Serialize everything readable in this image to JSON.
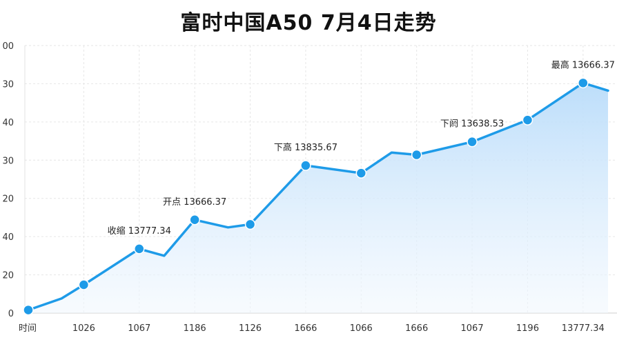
{
  "chart_data": {
    "type": "area",
    "title": "富时中国A50 7月4日走势",
    "xlabel": "",
    "ylabel": "",
    "x_tick_labels": [
      "时间",
      "1026",
      "1067",
      "1186",
      "1126",
      "1666",
      "1066",
      "1666",
      "1067",
      "1196",
      "13777.34"
    ],
    "y_tick_labels": [
      "0",
      "20",
      "40",
      "20",
      "30",
      "40",
      "30",
      "00"
    ],
    "y_tick_values": [
      0,
      1,
      2,
      3,
      4,
      5,
      6,
      7
    ],
    "ylim": [
      0,
      7
    ],
    "grid": true,
    "series": [
      {
        "x": [
          0,
          0.6,
          1,
          2,
          2.45,
          3,
          3.6,
          4,
          5,
          6,
          6.55,
          7,
          8,
          9,
          10,
          10.45
        ],
        "y": [
          0.08,
          0.38,
          0.74,
          1.68,
          1.5,
          2.44,
          2.24,
          2.32,
          3.86,
          3.66,
          4.2,
          4.14,
          4.48,
          5.05,
          6.02,
          5.82
        ]
      }
    ],
    "markers": [
      {
        "x": 0,
        "y": 0.08
      },
      {
        "x": 1,
        "y": 0.74
      },
      {
        "x": 2,
        "y": 1.68
      },
      {
        "x": 3,
        "y": 2.44
      },
      {
        "x": 4,
        "y": 2.32
      },
      {
        "x": 5,
        "y": 3.86
      },
      {
        "x": 6,
        "y": 3.66
      },
      {
        "x": 7,
        "y": 4.14
      },
      {
        "x": 8,
        "y": 4.48
      },
      {
        "x": 9,
        "y": 5.05
      },
      {
        "x": 10,
        "y": 6.02
      }
    ],
    "annotations": [
      {
        "text": "收缩 13777.34",
        "x": 2,
        "y": 1.68
      },
      {
        "text": "开点 13666.37",
        "x": 3,
        "y": 2.44
      },
      {
        "text": "下高 13835.67",
        "x": 5,
        "y": 3.86
      },
      {
        "text": "下阏 13638.53",
        "x": 8,
        "y": 4.48
      },
      {
        "text": "最高 13666.37",
        "x": 10,
        "y": 6.02
      }
    ],
    "colors": {
      "line": "#1e9be8",
      "marker": "#1e9be8",
      "fill_top": "#b9dcfa",
      "fill_bottom": "#f2f8fe",
      "grid": "#e6e6e6"
    }
  }
}
